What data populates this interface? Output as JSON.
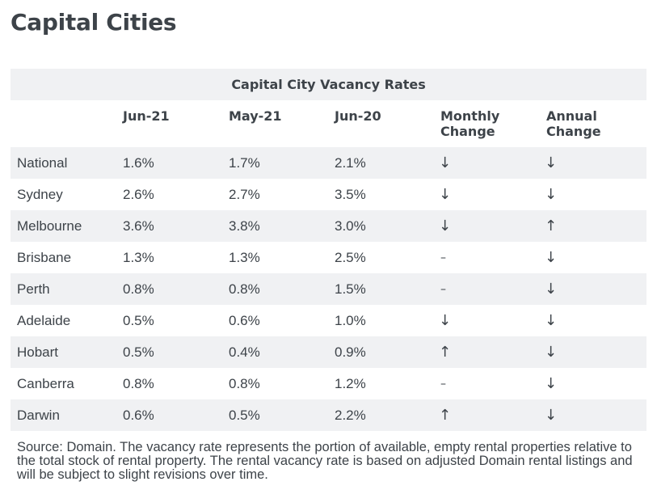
{
  "page": {
    "title": "Capital Cities"
  },
  "table": {
    "caption": "Capital City Vacancy Rates",
    "columns": [
      "",
      "Jun-21",
      "May-21",
      "Jun-20",
      "Monthly\nChange",
      "Annual\nChange"
    ],
    "column_lines": [
      [
        ""
      ],
      [
        "Jun-21"
      ],
      [
        "May-21"
      ],
      [
        "Jun-20"
      ],
      [
        "Monthly",
        "Change"
      ],
      [
        "Annual",
        "Change"
      ]
    ],
    "rows": [
      {
        "city": "National",
        "jun21": "1.6%",
        "may21": "1.7%",
        "jun20": "2.1%",
        "monthly": "↓",
        "annual": "↓"
      },
      {
        "city": "Sydney",
        "jun21": "2.6%",
        "may21": "2.7%",
        "jun20": "3.5%",
        "monthly": "↓",
        "annual": "↓"
      },
      {
        "city": "Melbourne",
        "jun21": "3.6%",
        "may21": "3.8%",
        "jun20": "3.0%",
        "monthly": "↓",
        "annual": "↑"
      },
      {
        "city": "Brisbane",
        "jun21": "1.3%",
        "may21": "1.3%",
        "jun20": "2.5%",
        "monthly": "–",
        "annual": "↓"
      },
      {
        "city": "Perth",
        "jun21": "0.8%",
        "may21": "0.8%",
        "jun20": "1.5%",
        "monthly": "–",
        "annual": "↓"
      },
      {
        "city": "Adelaide",
        "jun21": "0.5%",
        "may21": "0.6%",
        "jun20": "1.0%",
        "monthly": "↓",
        "annual": "↓"
      },
      {
        "city": "Hobart",
        "jun21": "0.5%",
        "may21": "0.4%",
        "jun20": "0.9%",
        "monthly": "↑",
        "annual": "↓"
      },
      {
        "city": "Canberra",
        "jun21": "0.8%",
        "may21": "0.8%",
        "jun20": "1.2%",
        "monthly": "–",
        "annual": "↓"
      },
      {
        "city": "Darwin",
        "jun21": "0.6%",
        "may21": "0.5%",
        "jun20": "2.2%",
        "monthly": "↑",
        "annual": "↓"
      }
    ],
    "source_note": "Source: Domain. The vacancy rate represents the portion of available, empty rental properties relative to the total stock of rental property. The rental vacancy rate is based on adjusted Domain rental listings and will be subject to slight revisions over time."
  },
  "colors": {
    "text": "#3d4349",
    "stripe": "#f0f1f3"
  }
}
